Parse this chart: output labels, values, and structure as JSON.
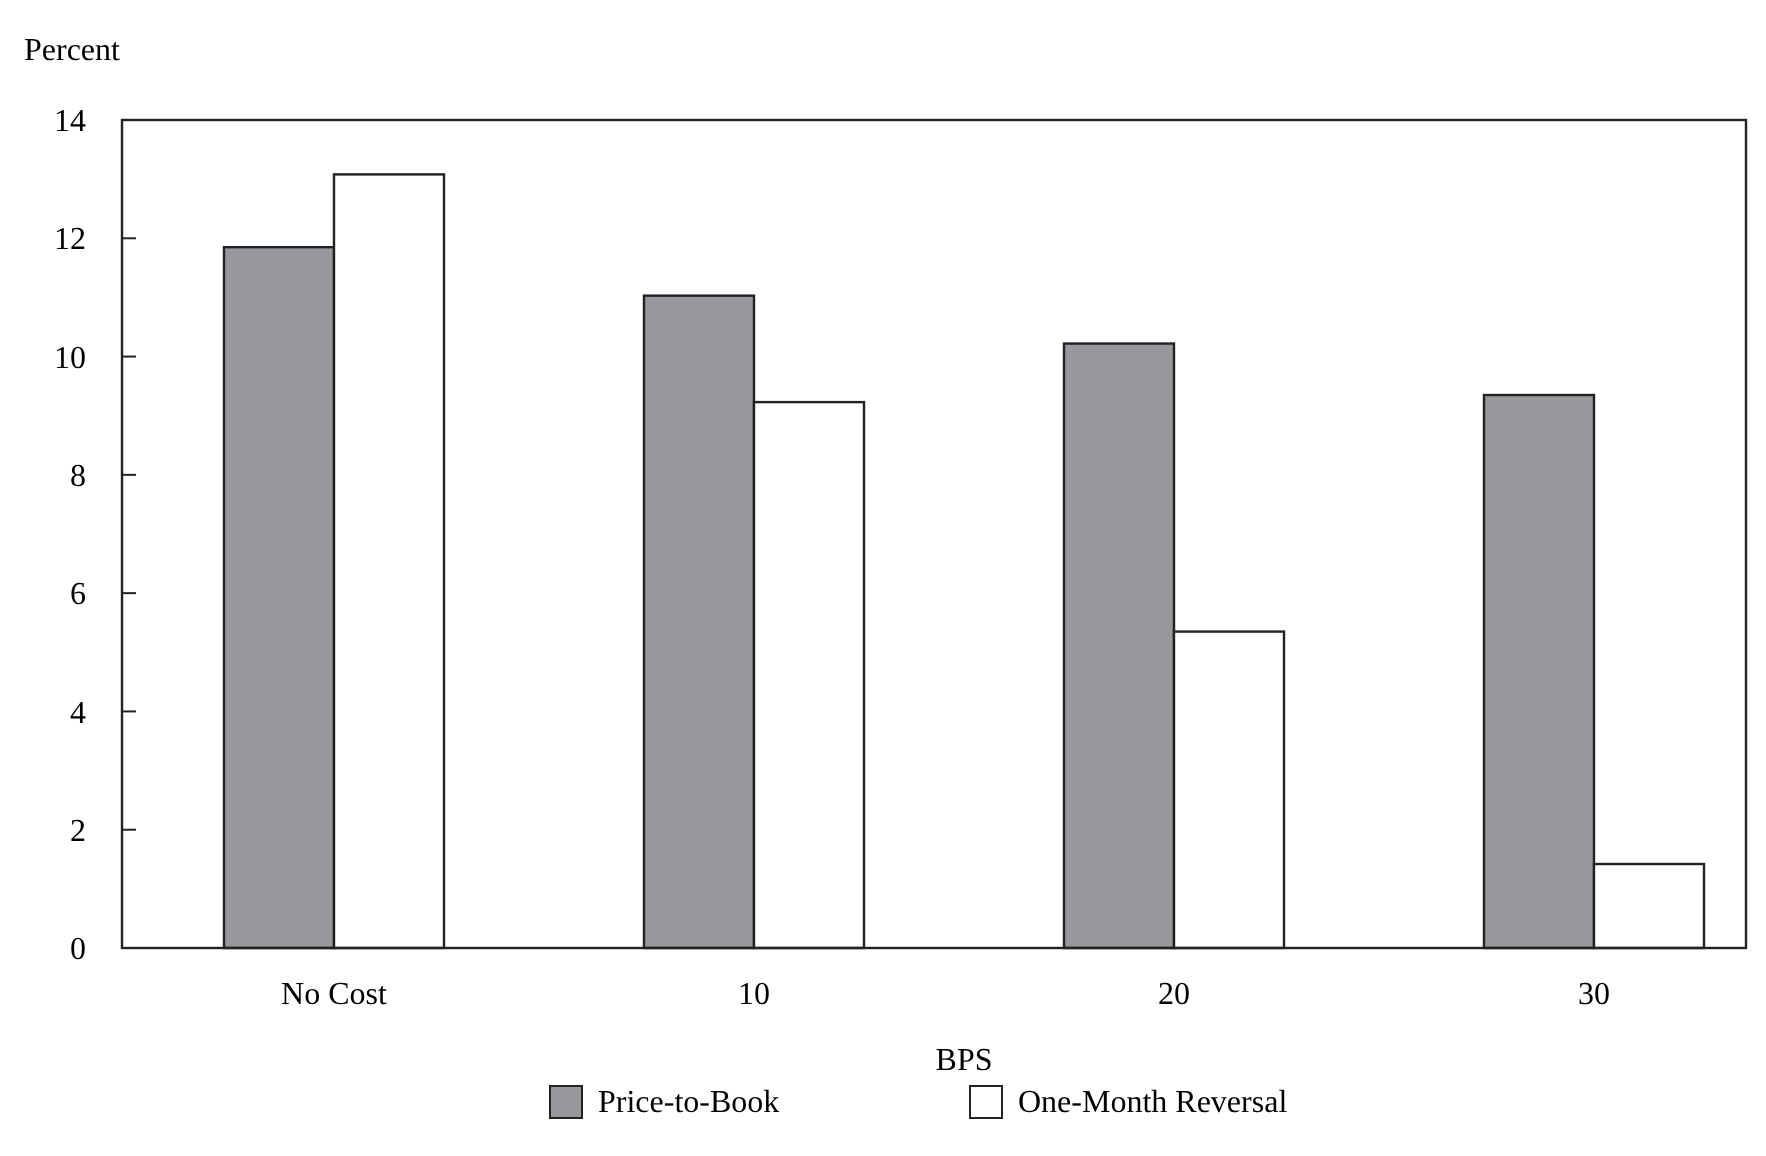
{
  "chart_data": {
    "type": "bar",
    "ylabel": "Percent",
    "xlabel": "BPS",
    "categories": [
      "No Cost",
      "10",
      "20",
      "30"
    ],
    "series": [
      {
        "name": "Price-to-Book",
        "color": "#97989b",
        "values": [
          11.85,
          11.03,
          10.22,
          9.35
        ]
      },
      {
        "name": "One-Month Reversal",
        "color": "#ffffff",
        "values": [
          13.08,
          9.23,
          5.35,
          1.42
        ]
      }
    ],
    "ylim": [
      0,
      14
    ],
    "yticks": [
      0,
      2,
      4,
      6,
      8,
      10,
      12,
      14
    ],
    "grid": false,
    "legend": "bottom"
  }
}
